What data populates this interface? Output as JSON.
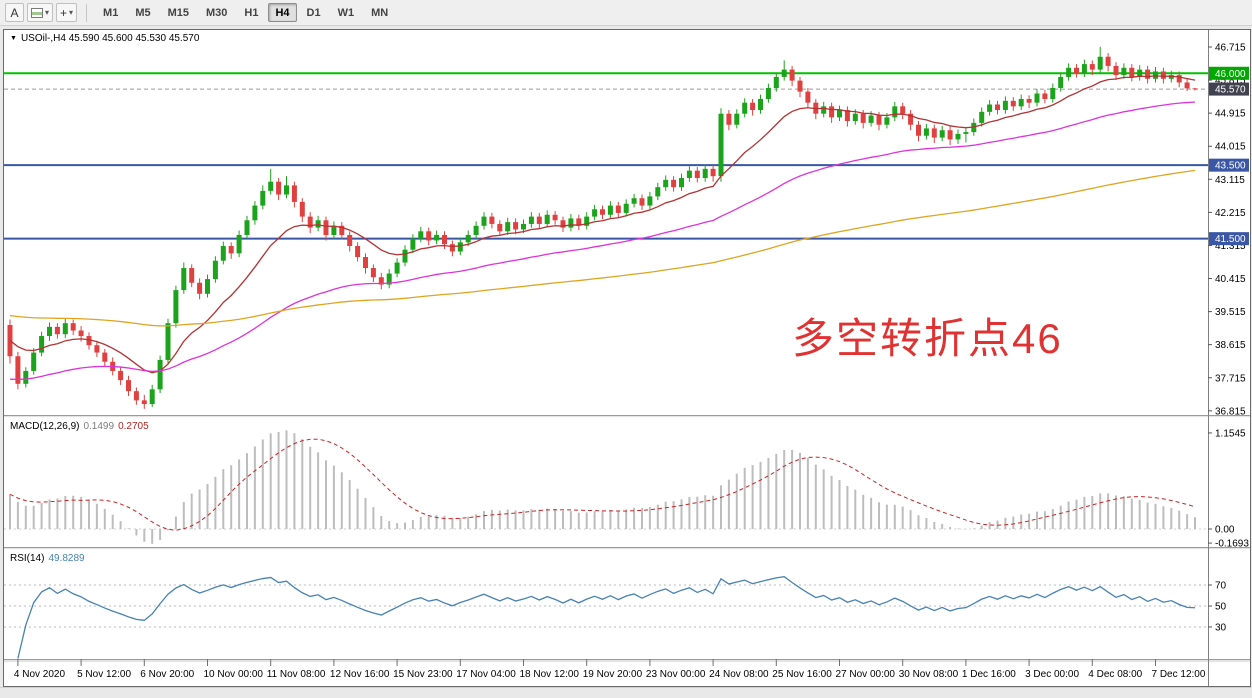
{
  "toolbar": {
    "tool_a": "A",
    "crosshair_glyph": "+",
    "caret_glyph": "▾",
    "timeframes": [
      "M1",
      "M5",
      "M15",
      "M30",
      "H1",
      "H4",
      "D1",
      "W1",
      "MN"
    ],
    "active_timeframe": "H4"
  },
  "chart": {
    "collapse_arrow": "▼",
    "header": "USOil-,H4  45.590 45.600 45.530 45.570",
    "annotation": "多空转折点46",
    "annotation_color": "#e03232"
  },
  "indicators": {
    "macd": {
      "label": "MACD(12,26,9)",
      "main_value": "0.1499",
      "signal_value": "0.2705",
      "axis_ticks": [
        "1.1545",
        "0.00",
        "-0.1693"
      ]
    },
    "rsi": {
      "label": "RSI(14)",
      "value": "49.8289",
      "axis_ticks": [
        "70",
        "50",
        "30"
      ]
    }
  },
  "chart_data": {
    "type": "candlestick",
    "symbol": "USOil-",
    "timeframe": "H4",
    "current_ohlc": {
      "open": 45.59,
      "high": 45.6,
      "low": 45.53,
      "close": 45.57
    },
    "price_axis_ticks": [
      "46.715",
      "45.815",
      "44.915",
      "44.015",
      "43.115",
      "42.215",
      "41.315",
      "40.415",
      "39.515",
      "38.615",
      "37.715",
      "36.815"
    ],
    "x_labels": [
      "4 Nov 2020",
      "5 Nov 12:00",
      "6 Nov 20:00",
      "10 Nov 00:00",
      "11 Nov 08:00",
      "12 Nov 16:00",
      "15 Nov 23:00",
      "17 Nov 04:00",
      "18 Nov 12:00",
      "19 Nov 20:00",
      "23 Nov 00:00",
      "24 Nov 08:00",
      "25 Nov 16:00",
      "27 Nov 00:00",
      "30 Nov 08:00",
      "1 Dec 16:00",
      "3 Dec 00:00",
      "4 Dec 08:00",
      "7 Dec 12:00"
    ],
    "bars_per_label": 8,
    "first_label_bar": 1,
    "colors": {
      "up": "#1ca31c",
      "down": "#e04040",
      "macd_hist": "#bdbdbd",
      "macd_signal": "#cc2222",
      "rsi_line": "#4682b4"
    },
    "overlays": [
      {
        "name": "ma-fast",
        "type": "ema",
        "period": 13,
        "seed": 38.8,
        "color": "#b43232"
      },
      {
        "name": "ma-mid",
        "type": "ema",
        "period": 50,
        "seed": 37.65,
        "color": "#dd33dd"
      },
      {
        "name": "ma-slow",
        "type": "ema",
        "period": 150,
        "seed": 39.42,
        "color": "#dfa520"
      }
    ],
    "hlines": [
      {
        "value": 46.0,
        "label": "46.000",
        "color": "#00c000",
        "badge": "#00a800",
        "width": 2
      },
      {
        "value": 43.5,
        "label": "43.500",
        "color": "#3a57a7",
        "badge": "#3a57a7",
        "width": 2
      },
      {
        "value": 41.5,
        "label": "41.500",
        "color": "#3a57a7",
        "badge": "#3a57a7",
        "width": 2
      }
    ],
    "current_price": {
      "value": 45.57,
      "label": "45.570",
      "badge": "#41414f"
    },
    "macd": {
      "fast": 12,
      "slow": 26,
      "signal": 9
    },
    "rsi": {
      "period": 14,
      "levels": [
        70,
        50,
        30
      ]
    },
    "candles": [
      [
        39.15,
        39.3,
        38.1,
        38.3
      ],
      [
        38.3,
        38.42,
        37.4,
        37.55
      ],
      [
        37.55,
        38.0,
        37.45,
        37.9
      ],
      [
        37.9,
        38.52,
        37.8,
        38.4
      ],
      [
        38.4,
        38.97,
        38.3,
        38.85
      ],
      [
        38.85,
        39.22,
        38.72,
        39.1
      ],
      [
        39.1,
        39.2,
        38.78,
        38.9
      ],
      [
        38.9,
        39.32,
        38.8,
        39.2
      ],
      [
        39.2,
        39.3,
        38.88,
        39.0
      ],
      [
        39.0,
        39.12,
        38.7,
        38.85
      ],
      [
        38.85,
        38.95,
        38.48,
        38.6
      ],
      [
        38.6,
        38.72,
        38.28,
        38.4
      ],
      [
        38.4,
        38.5,
        38.02,
        38.15
      ],
      [
        38.15,
        38.27,
        37.78,
        37.9
      ],
      [
        37.9,
        38.0,
        37.52,
        37.65
      ],
      [
        37.65,
        37.77,
        37.22,
        37.35
      ],
      [
        37.35,
        37.45,
        36.98,
        37.1
      ],
      [
        37.1,
        37.25,
        36.87,
        37.0
      ],
      [
        37.0,
        37.52,
        36.92,
        37.4
      ],
      [
        37.4,
        38.32,
        37.3,
        38.2
      ],
      [
        38.2,
        39.32,
        38.1,
        39.2
      ],
      [
        39.2,
        40.22,
        39.08,
        40.1
      ],
      [
        40.1,
        40.85,
        40.0,
        40.7
      ],
      [
        40.7,
        40.8,
        40.18,
        40.3
      ],
      [
        40.3,
        40.42,
        39.85,
        40.0
      ],
      [
        40.0,
        40.52,
        39.9,
        40.4
      ],
      [
        40.4,
        41.02,
        40.3,
        40.9
      ],
      [
        40.9,
        41.42,
        40.8,
        41.3
      ],
      [
        41.3,
        41.4,
        40.95,
        41.1
      ],
      [
        41.1,
        41.72,
        41.0,
        41.6
      ],
      [
        41.6,
        42.12,
        41.5,
        42.0
      ],
      [
        42.0,
        42.52,
        41.88,
        42.4
      ],
      [
        42.4,
        42.95,
        42.3,
        42.8
      ],
      [
        42.8,
        43.4,
        42.7,
        43.05
      ],
      [
        43.05,
        43.15,
        42.55,
        42.7
      ],
      [
        42.7,
        43.2,
        42.6,
        42.95
      ],
      [
        42.95,
        43.05,
        42.35,
        42.5
      ],
      [
        42.5,
        42.6,
        41.95,
        42.1
      ],
      [
        42.1,
        42.22,
        41.65,
        41.8
      ],
      [
        41.8,
        42.12,
        41.7,
        42.0
      ],
      [
        42.0,
        42.1,
        41.45,
        41.6
      ],
      [
        41.6,
        41.97,
        41.5,
        41.85
      ],
      [
        41.85,
        41.95,
        41.48,
        41.6
      ],
      [
        41.6,
        41.7,
        41.15,
        41.3
      ],
      [
        41.3,
        41.4,
        40.88,
        41.0
      ],
      [
        41.0,
        41.1,
        40.55,
        40.7
      ],
      [
        40.7,
        40.8,
        40.32,
        40.45
      ],
      [
        40.45,
        40.57,
        40.12,
        40.25
      ],
      [
        40.25,
        40.67,
        40.15,
        40.55
      ],
      [
        40.55,
        40.97,
        40.45,
        40.85
      ],
      [
        40.85,
        41.32,
        40.75,
        41.2
      ],
      [
        41.2,
        41.62,
        41.1,
        41.5
      ],
      [
        41.5,
        41.82,
        41.4,
        41.7
      ],
      [
        41.7,
        41.8,
        41.32,
        41.45
      ],
      [
        41.45,
        41.72,
        41.35,
        41.6
      ],
      [
        41.6,
        41.7,
        41.22,
        41.35
      ],
      [
        41.35,
        41.45,
        41.02,
        41.15
      ],
      [
        41.15,
        41.52,
        41.05,
        41.4
      ],
      [
        41.4,
        41.72,
        41.3,
        41.6
      ],
      [
        41.6,
        41.97,
        41.5,
        41.85
      ],
      [
        41.85,
        42.22,
        41.75,
        42.1
      ],
      [
        42.1,
        42.2,
        41.78,
        41.9
      ],
      [
        41.9,
        42.0,
        41.58,
        41.7
      ],
      [
        41.7,
        42.07,
        41.6,
        41.95
      ],
      [
        41.95,
        42.05,
        41.62,
        41.75
      ],
      [
        41.75,
        42.02,
        41.65,
        41.9
      ],
      [
        41.9,
        42.22,
        41.8,
        42.1
      ],
      [
        42.1,
        42.2,
        41.78,
        41.9
      ],
      [
        41.9,
        42.27,
        41.8,
        42.15
      ],
      [
        42.15,
        42.25,
        41.88,
        42.0
      ],
      [
        42.0,
        42.1,
        41.68,
        41.8
      ],
      [
        41.8,
        42.17,
        41.7,
        42.05
      ],
      [
        42.05,
        42.15,
        41.73,
        41.85
      ],
      [
        41.85,
        42.22,
        41.75,
        42.1
      ],
      [
        42.1,
        42.42,
        42.0,
        42.3
      ],
      [
        42.3,
        42.4,
        42.03,
        42.15
      ],
      [
        42.15,
        42.52,
        42.05,
        42.4
      ],
      [
        42.4,
        42.5,
        42.08,
        42.2
      ],
      [
        42.2,
        42.57,
        42.1,
        42.45
      ],
      [
        42.45,
        42.72,
        42.35,
        42.6
      ],
      [
        42.6,
        42.7,
        42.28,
        42.4
      ],
      [
        42.4,
        42.77,
        42.3,
        42.65
      ],
      [
        42.65,
        43.02,
        42.55,
        42.9
      ],
      [
        42.9,
        43.22,
        42.8,
        43.1
      ],
      [
        43.1,
        43.2,
        42.78,
        42.9
      ],
      [
        42.9,
        43.27,
        42.8,
        43.15
      ],
      [
        43.15,
        43.47,
        43.05,
        43.35
      ],
      [
        43.35,
        43.45,
        43.03,
        43.15
      ],
      [
        43.15,
        43.52,
        43.05,
        43.4
      ],
      [
        43.4,
        43.5,
        43.05,
        43.2
      ],
      [
        43.2,
        45.05,
        43.05,
        44.9
      ],
      [
        44.9,
        45.0,
        44.45,
        44.6
      ],
      [
        44.6,
        45.02,
        44.5,
        44.9
      ],
      [
        44.9,
        45.32,
        44.8,
        45.2
      ],
      [
        45.2,
        45.3,
        44.85,
        45.0
      ],
      [
        45.0,
        45.42,
        44.9,
        45.3
      ],
      [
        45.3,
        45.72,
        45.2,
        45.6
      ],
      [
        45.6,
        46.02,
        45.5,
        45.9
      ],
      [
        45.9,
        46.35,
        45.8,
        46.1
      ],
      [
        46.1,
        46.2,
        45.65,
        45.8
      ],
      [
        45.8,
        45.9,
        45.35,
        45.5
      ],
      [
        45.5,
        45.6,
        45.05,
        45.2
      ],
      [
        45.2,
        45.3,
        44.75,
        44.9
      ],
      [
        44.9,
        45.22,
        44.8,
        45.1
      ],
      [
        45.1,
        45.2,
        44.65,
        44.8
      ],
      [
        44.8,
        45.12,
        44.7,
        45.0
      ],
      [
        45.0,
        45.1,
        44.55,
        44.7
      ],
      [
        44.7,
        45.02,
        44.6,
        44.9
      ],
      [
        44.9,
        45.0,
        44.5,
        44.65
      ],
      [
        44.65,
        44.97,
        44.55,
        44.85
      ],
      [
        44.85,
        44.95,
        44.45,
        44.6
      ],
      [
        44.6,
        44.92,
        44.5,
        44.8
      ],
      [
        44.8,
        45.22,
        44.7,
        45.1
      ],
      [
        45.1,
        45.2,
        44.75,
        44.9
      ],
      [
        44.9,
        45.0,
        44.45,
        44.6
      ],
      [
        44.6,
        44.7,
        44.15,
        44.3
      ],
      [
        44.3,
        44.62,
        44.2,
        44.5
      ],
      [
        44.5,
        44.6,
        44.1,
        44.25
      ],
      [
        44.25,
        44.57,
        44.15,
        44.45
      ],
      [
        44.45,
        44.55,
        44.05,
        44.2
      ],
      [
        44.2,
        44.47,
        44.08,
        44.35
      ],
      [
        44.35,
        44.52,
        44.12,
        44.4
      ],
      [
        44.4,
        44.77,
        44.3,
        44.65
      ],
      [
        44.65,
        45.07,
        44.55,
        44.95
      ],
      [
        44.95,
        45.27,
        44.85,
        45.15
      ],
      [
        45.15,
        45.25,
        44.88,
        45.0
      ],
      [
        45.0,
        45.37,
        44.9,
        45.25
      ],
      [
        45.25,
        45.35,
        44.98,
        45.1
      ],
      [
        45.1,
        45.42,
        45.0,
        45.3
      ],
      [
        45.3,
        45.4,
        45.05,
        45.2
      ],
      [
        45.2,
        45.57,
        45.1,
        45.45
      ],
      [
        45.45,
        45.55,
        45.18,
        45.3
      ],
      [
        45.3,
        45.72,
        45.2,
        45.6
      ],
      [
        45.6,
        46.02,
        45.5,
        45.9
      ],
      [
        45.9,
        46.27,
        45.8,
        46.15
      ],
      [
        46.15,
        46.25,
        45.88,
        46.0
      ],
      [
        46.0,
        46.37,
        45.9,
        46.25
      ],
      [
        46.25,
        46.35,
        45.95,
        46.1
      ],
      [
        46.1,
        46.72,
        46.0,
        46.45
      ],
      [
        46.45,
        46.55,
        46.05,
        46.2
      ],
      [
        46.2,
        46.3,
        45.82,
        45.95
      ],
      [
        45.95,
        46.27,
        45.85,
        46.15
      ],
      [
        46.15,
        46.25,
        45.78,
        45.9
      ],
      [
        45.9,
        46.22,
        45.8,
        46.1
      ],
      [
        46.1,
        46.2,
        45.72,
        45.85
      ],
      [
        45.85,
        46.17,
        45.75,
        46.05
      ],
      [
        46.05,
        46.15,
        45.72,
        45.85
      ],
      [
        45.85,
        46.07,
        45.75,
        45.95
      ],
      [
        45.95,
        46.05,
        45.62,
        45.75
      ],
      [
        45.75,
        45.85,
        45.52,
        45.59
      ],
      [
        45.59,
        45.6,
        45.53,
        45.57
      ]
    ]
  }
}
